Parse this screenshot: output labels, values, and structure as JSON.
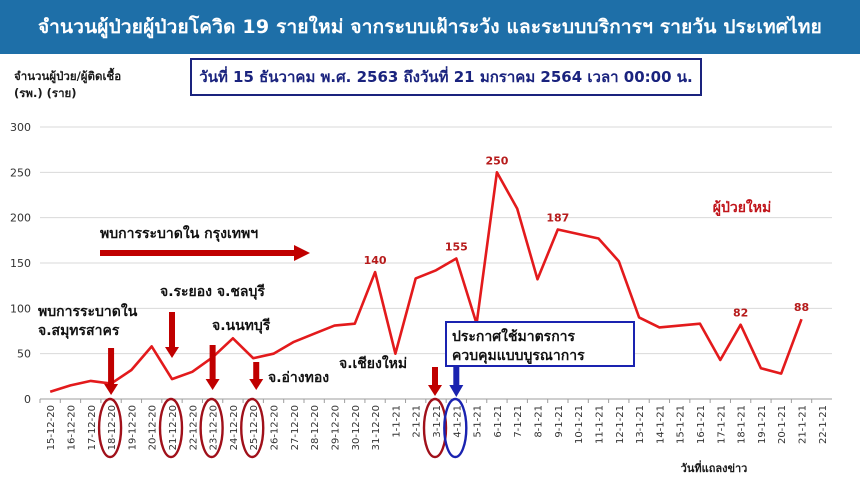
{
  "header": {
    "title": "จำนวนผู้ป่วยผู้ป่วยโควิด 19 รายใหม่ จากระบบเฝ้าระวัง และระบบบริการฯ รายวัน ประเทศไทย"
  },
  "y_axis_caption": {
    "line1": "จำนวนผู้ป่วย/ผู้ติดเชื้อ",
    "line2": "(รพ.) (ราย)"
  },
  "date_range": "วันที่ 15 ธันวาคม พ.ศ. 2563 ถึงวันที่ 21 มกราคม 2564 เวลา 00:00 น.",
  "colors": {
    "header_bg": "#1e6fa8",
    "line": "#e31a1c",
    "arrow": "#c00000",
    "blue": "#1a23b0",
    "grid": "#d9d9d9"
  },
  "chart_data": {
    "type": "line",
    "xlabel": "วันที่แถลงข่าว",
    "ylabel": "จำนวนผู้ป่วย/ผู้ติดเชื้อ (รพ.) (ราย)",
    "ylim": [
      0,
      300
    ],
    "yticks": [
      0,
      50,
      100,
      150,
      200,
      250,
      300
    ],
    "grid": true,
    "categories": [
      "15-12-20",
      "16-12-20",
      "17-12-20",
      "18-12-20",
      "19-12-20",
      "20-12-20",
      "21-12-20",
      "22-12-20",
      "23-12-20",
      "24-12-20",
      "25-12-20",
      "26-12-20",
      "27-12-20",
      "28-12-20",
      "29-12-20",
      "30-12-20",
      "31-12-20",
      "1-1-21",
      "2-1-21",
      "3-1-21",
      "4-1-21",
      "5-1-21",
      "6-1-21",
      "7-1-21",
      "8-1-21",
      "9-1-21",
      "10-1-21",
      "11-1-21",
      "12-1-21",
      "13-1-21",
      "14-1-21",
      "15-1-21",
      "16-1-21",
      "17-1-21",
      "18-1-21",
      "19-1-21",
      "20-1-21",
      "21-1-21",
      "22-1-21"
    ],
    "series": [
      {
        "name": "ผู้ป่วยใหม่",
        "values": [
          8,
          15,
          20,
          17,
          32,
          58,
          22,
          30,
          46,
          67,
          45,
          50,
          63,
          72,
          81,
          83,
          140,
          50,
          133,
          142,
          155,
          83,
          250,
          210,
          132,
          187,
          182,
          177,
          152,
          90,
          79,
          81,
          83,
          43,
          82,
          34,
          28,
          88,
          null
        ]
      }
    ],
    "data_labels": [
      {
        "index": 16,
        "text": "140"
      },
      {
        "index": 20,
        "text": "155"
      },
      {
        "index": 22,
        "text": "250"
      },
      {
        "index": 25,
        "text": "187"
      },
      {
        "index": 34,
        "text": "82"
      },
      {
        "index": 37,
        "text": "88"
      }
    ],
    "annotations": {
      "bkk_banner": "พบการระบาดใน กรุงเทพฯ",
      "samut_sakhon_1": "พบการระบาดใน",
      "samut_sakhon_2": "จ.สมุทรสาคร",
      "rayong_chonburi": "จ.ระยอง จ.ชลบุรี",
      "nonthaburi": "จ.นนทบุรี",
      "ang_thong": "จ.อ่างทอง",
      "chiang_mai": "จ.เชียงใหม่",
      "measures_1": "ประกาศใช้มาตรการ",
      "measures_2": "ควบคุมแบบบูรณาการ"
    }
  }
}
